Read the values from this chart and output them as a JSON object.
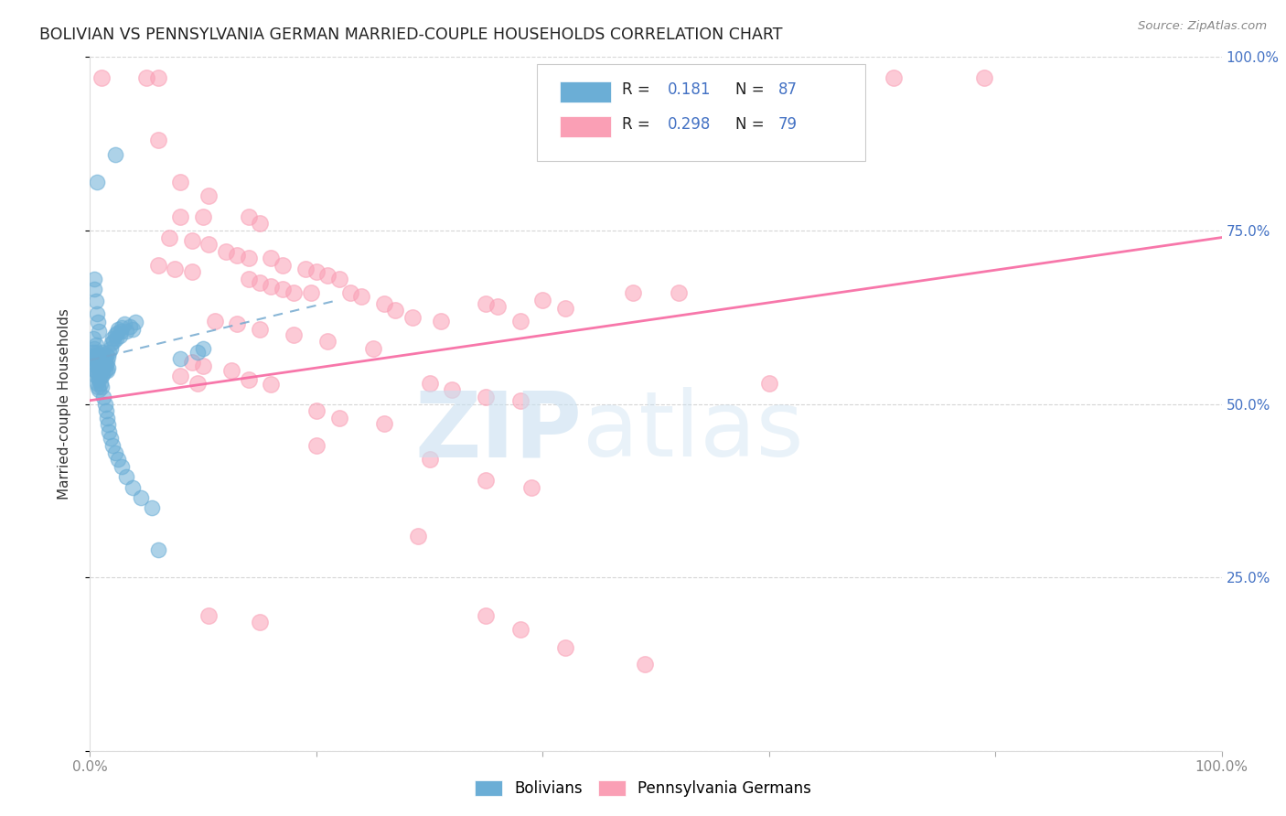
{
  "title": "BOLIVIAN VS PENNSYLVANIA GERMAN MARRIED-COUPLE HOUSEHOLDS CORRELATION CHART",
  "source": "Source: ZipAtlas.com",
  "ylabel": "Married-couple Households",
  "xlim": [
    0,
    1.0
  ],
  "ylim": [
    0,
    1.0
  ],
  "blue_color": "#6baed6",
  "pink_color": "#fa9fb5",
  "blue_line_color": "#74a9cf",
  "pink_line_color": "#f768a1",
  "title_color": "#222222",
  "source_color": "#888888",
  "axis_label_color": "#333333",
  "right_tick_color": "#4472c4",
  "grid_color": "#cccccc",
  "background_color": "#ffffff",
  "blue_scatter": [
    [
      0.003,
      0.595
    ],
    [
      0.003,
      0.575
    ],
    [
      0.003,
      0.56
    ],
    [
      0.004,
      0.58
    ],
    [
      0.004,
      0.565
    ],
    [
      0.004,
      0.55
    ],
    [
      0.005,
      0.585
    ],
    [
      0.005,
      0.57
    ],
    [
      0.005,
      0.555
    ],
    [
      0.005,
      0.54
    ],
    [
      0.006,
      0.575
    ],
    [
      0.006,
      0.56
    ],
    [
      0.006,
      0.545
    ],
    [
      0.006,
      0.53
    ],
    [
      0.007,
      0.57
    ],
    [
      0.007,
      0.555
    ],
    [
      0.007,
      0.54
    ],
    [
      0.007,
      0.525
    ],
    [
      0.008,
      0.565
    ],
    [
      0.008,
      0.55
    ],
    [
      0.008,
      0.535
    ],
    [
      0.008,
      0.52
    ],
    [
      0.009,
      0.56
    ],
    [
      0.009,
      0.545
    ],
    [
      0.009,
      0.53
    ],
    [
      0.01,
      0.555
    ],
    [
      0.01,
      0.54
    ],
    [
      0.01,
      0.525
    ],
    [
      0.011,
      0.575
    ],
    [
      0.011,
      0.558
    ],
    [
      0.011,
      0.543
    ],
    [
      0.012,
      0.568
    ],
    [
      0.012,
      0.553
    ],
    [
      0.013,
      0.562
    ],
    [
      0.013,
      0.548
    ],
    [
      0.014,
      0.57
    ],
    [
      0.014,
      0.556
    ],
    [
      0.015,
      0.562
    ],
    [
      0.015,
      0.548
    ],
    [
      0.016,
      0.568
    ],
    [
      0.016,
      0.552
    ],
    [
      0.017,
      0.575
    ],
    [
      0.018,
      0.58
    ],
    [
      0.019,
      0.588
    ],
    [
      0.02,
      0.595
    ],
    [
      0.021,
      0.59
    ],
    [
      0.022,
      0.6
    ],
    [
      0.023,
      0.595
    ],
    [
      0.024,
      0.602
    ],
    [
      0.025,
      0.608
    ],
    [
      0.026,
      0.598
    ],
    [
      0.027,
      0.605
    ],
    [
      0.028,
      0.61
    ],
    [
      0.03,
      0.615
    ],
    [
      0.032,
      0.605
    ],
    [
      0.035,
      0.612
    ],
    [
      0.038,
      0.608
    ],
    [
      0.04,
      0.618
    ],
    [
      0.012,
      0.51
    ],
    [
      0.013,
      0.5
    ],
    [
      0.014,
      0.49
    ],
    [
      0.015,
      0.48
    ],
    [
      0.016,
      0.47
    ],
    [
      0.017,
      0.46
    ],
    [
      0.018,
      0.45
    ],
    [
      0.02,
      0.44
    ],
    [
      0.022,
      0.43
    ],
    [
      0.025,
      0.42
    ],
    [
      0.028,
      0.41
    ],
    [
      0.032,
      0.395
    ],
    [
      0.038,
      0.38
    ],
    [
      0.045,
      0.365
    ],
    [
      0.055,
      0.35
    ],
    [
      0.022,
      0.86
    ],
    [
      0.006,
      0.82
    ],
    [
      0.06,
      0.29
    ],
    [
      0.004,
      0.68
    ],
    [
      0.004,
      0.665
    ],
    [
      0.005,
      0.648
    ],
    [
      0.006,
      0.63
    ],
    [
      0.007,
      0.618
    ],
    [
      0.008,
      0.605
    ],
    [
      0.1,
      0.58
    ],
    [
      0.095,
      0.575
    ],
    [
      0.08,
      0.565
    ]
  ],
  "pink_scatter": [
    [
      0.01,
      0.97
    ],
    [
      0.05,
      0.97
    ],
    [
      0.06,
      0.97
    ],
    [
      0.71,
      0.97
    ],
    [
      0.79,
      0.97
    ],
    [
      0.06,
      0.88
    ],
    [
      0.08,
      0.82
    ],
    [
      0.105,
      0.8
    ],
    [
      0.08,
      0.77
    ],
    [
      0.1,
      0.77
    ],
    [
      0.14,
      0.77
    ],
    [
      0.15,
      0.76
    ],
    [
      0.07,
      0.74
    ],
    [
      0.09,
      0.735
    ],
    [
      0.105,
      0.73
    ],
    [
      0.12,
      0.72
    ],
    [
      0.13,
      0.715
    ],
    [
      0.14,
      0.71
    ],
    [
      0.06,
      0.7
    ],
    [
      0.075,
      0.695
    ],
    [
      0.09,
      0.69
    ],
    [
      0.16,
      0.71
    ],
    [
      0.17,
      0.7
    ],
    [
      0.19,
      0.695
    ],
    [
      0.2,
      0.69
    ],
    [
      0.21,
      0.685
    ],
    [
      0.22,
      0.68
    ],
    [
      0.14,
      0.68
    ],
    [
      0.15,
      0.675
    ],
    [
      0.16,
      0.67
    ],
    [
      0.17,
      0.665
    ],
    [
      0.18,
      0.66
    ],
    [
      0.195,
      0.66
    ],
    [
      0.23,
      0.66
    ],
    [
      0.24,
      0.655
    ],
    [
      0.26,
      0.645
    ],
    [
      0.27,
      0.635
    ],
    [
      0.285,
      0.625
    ],
    [
      0.31,
      0.62
    ],
    [
      0.35,
      0.645
    ],
    [
      0.36,
      0.64
    ],
    [
      0.38,
      0.62
    ],
    [
      0.4,
      0.65
    ],
    [
      0.42,
      0.638
    ],
    [
      0.48,
      0.66
    ],
    [
      0.52,
      0.66
    ],
    [
      0.11,
      0.62
    ],
    [
      0.13,
      0.615
    ],
    [
      0.15,
      0.608
    ],
    [
      0.18,
      0.6
    ],
    [
      0.21,
      0.59
    ],
    [
      0.25,
      0.58
    ],
    [
      0.09,
      0.56
    ],
    [
      0.1,
      0.555
    ],
    [
      0.125,
      0.548
    ],
    [
      0.14,
      0.535
    ],
    [
      0.16,
      0.528
    ],
    [
      0.08,
      0.54
    ],
    [
      0.095,
      0.53
    ],
    [
      0.2,
      0.49
    ],
    [
      0.22,
      0.48
    ],
    [
      0.26,
      0.472
    ],
    [
      0.3,
      0.53
    ],
    [
      0.32,
      0.52
    ],
    [
      0.35,
      0.51
    ],
    [
      0.38,
      0.505
    ],
    [
      0.6,
      0.53
    ],
    [
      0.2,
      0.44
    ],
    [
      0.3,
      0.42
    ],
    [
      0.35,
      0.39
    ],
    [
      0.39,
      0.38
    ],
    [
      0.29,
      0.31
    ],
    [
      0.35,
      0.195
    ],
    [
      0.38,
      0.175
    ],
    [
      0.42,
      0.148
    ],
    [
      0.49,
      0.125
    ],
    [
      0.105,
      0.195
    ],
    [
      0.15,
      0.185
    ]
  ],
  "blue_trend": [
    0.0,
    0.563,
    0.22,
    0.65
  ],
  "pink_trend": [
    0.0,
    0.505,
    1.0,
    0.74
  ]
}
